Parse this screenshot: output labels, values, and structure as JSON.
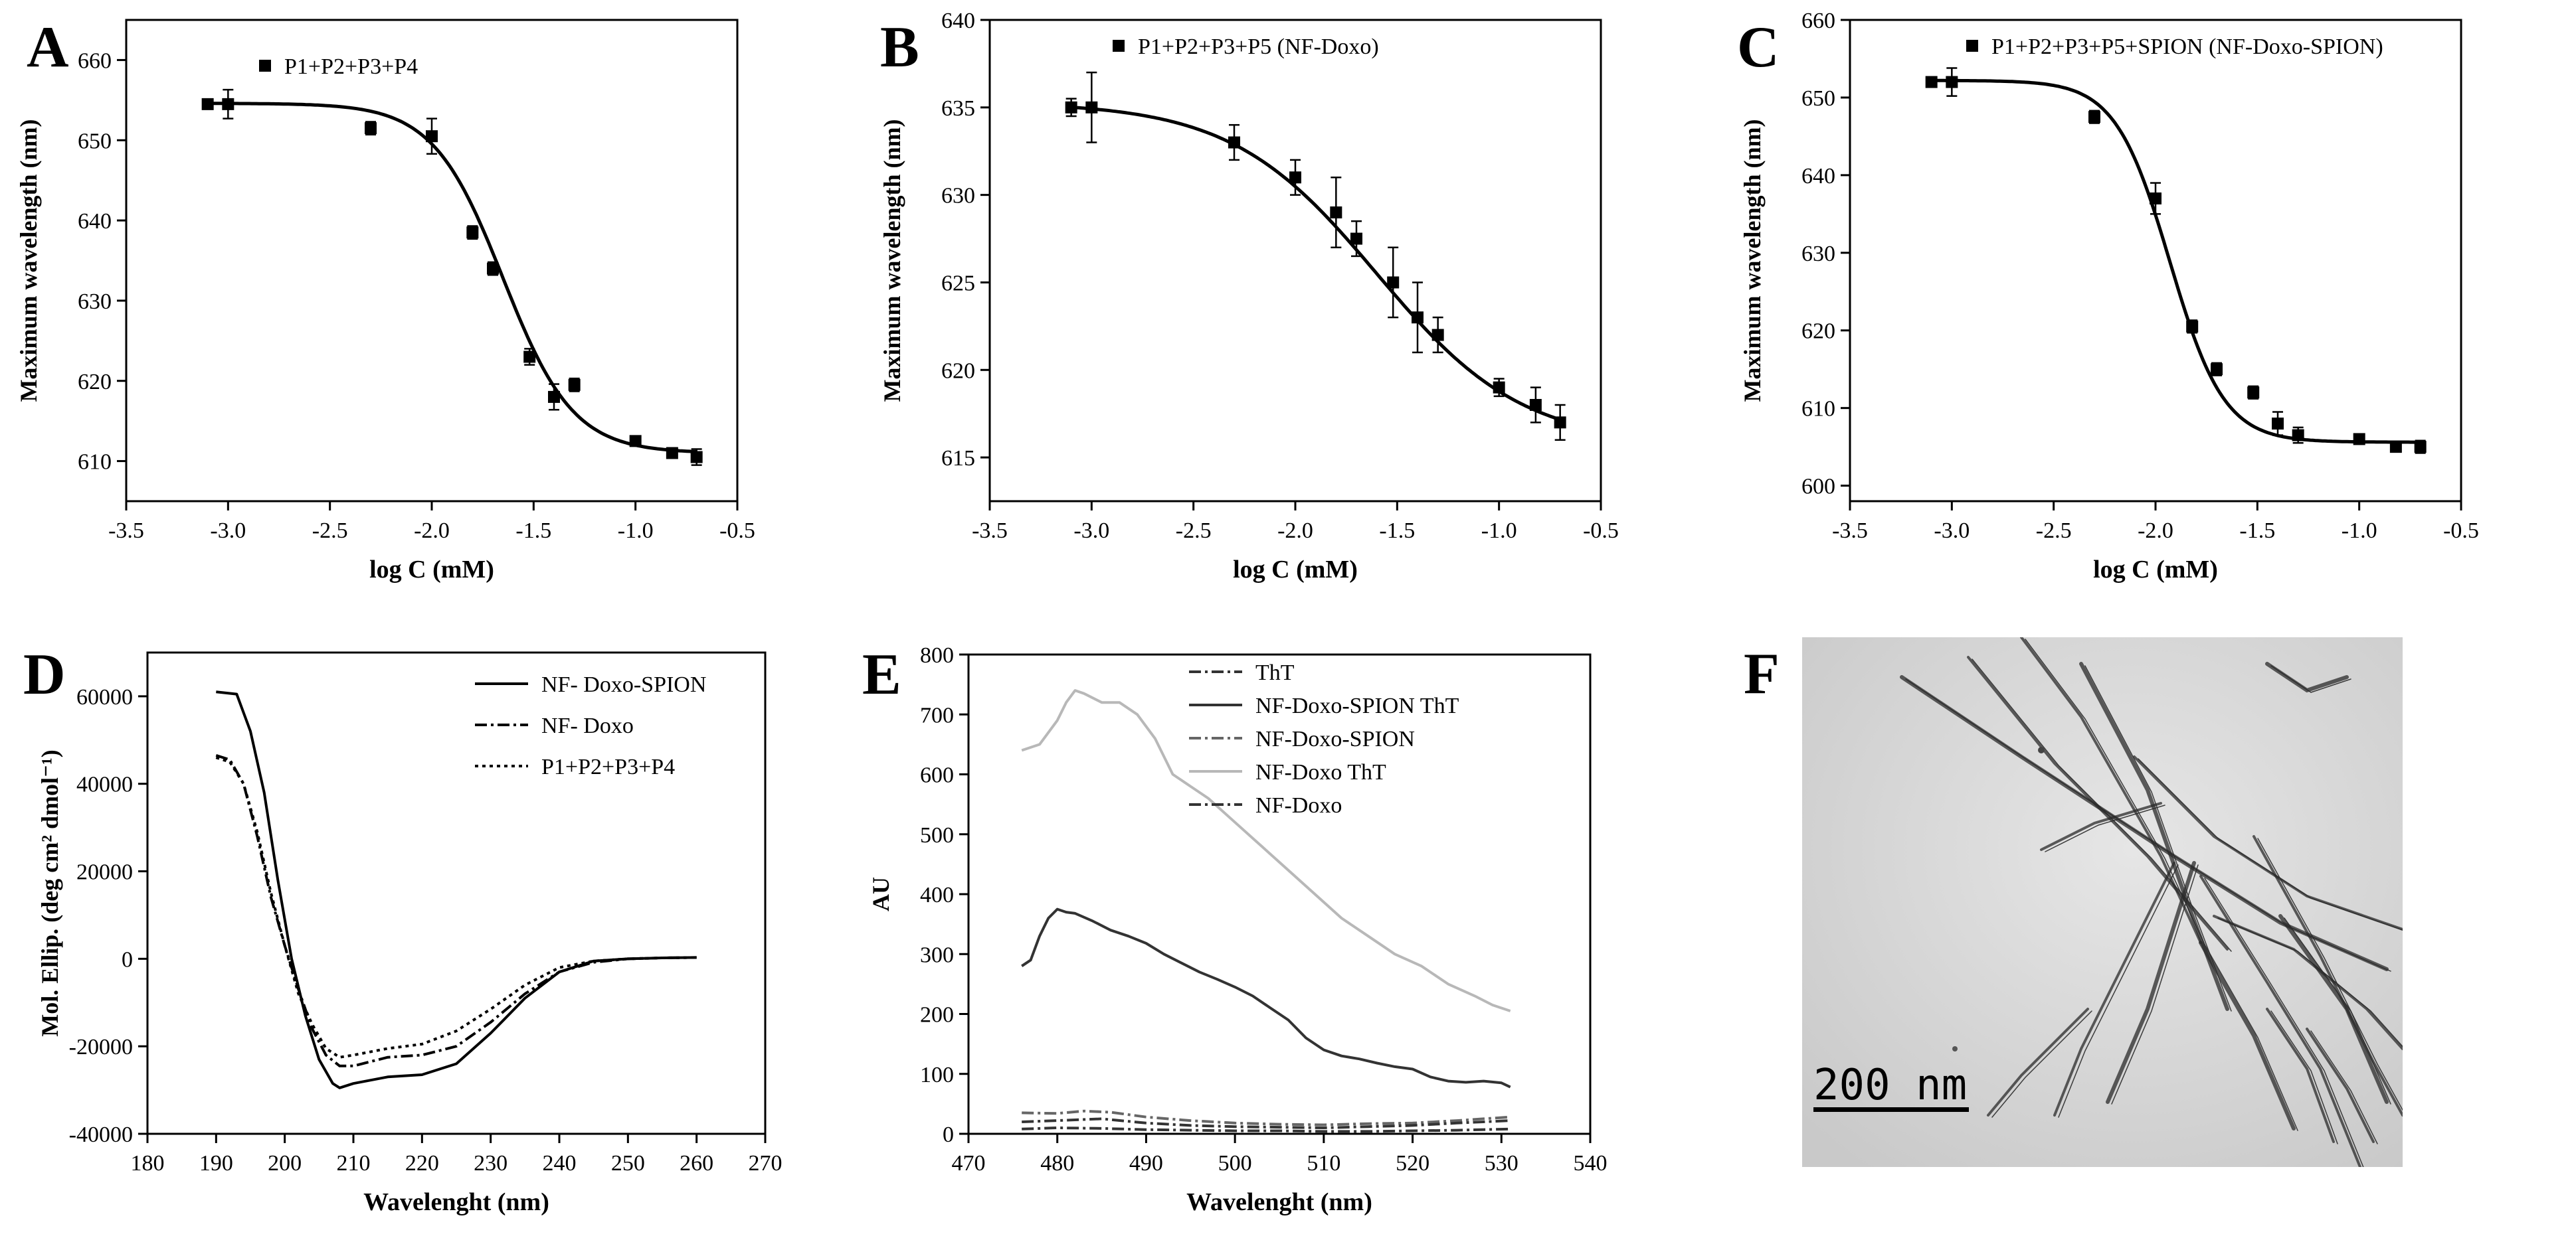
{
  "chart_data": [
    {
      "id": "A",
      "type": "scatter",
      "letter": "A",
      "xlabel": "log C (mM)",
      "ylabel": "Maximum wavelength (nm)",
      "xlim": [
        -3.5,
        -0.5
      ],
      "ylim": [
        605,
        665
      ],
      "xticks": [
        -3.5,
        -3.0,
        -2.5,
        -2.0,
        -1.5,
        -1.0,
        -0.5
      ],
      "xtick_labels": [
        "-3.5",
        "-3.0",
        "-2.5",
        "-2.0",
        "-1.5",
        "-1.0",
        "-0.5"
      ],
      "yticks": [
        610,
        620,
        630,
        640,
        650,
        660
      ],
      "ytick_labels": [
        "610",
        "620",
        "630",
        "640",
        "650",
        "660"
      ],
      "legend": [
        "P1+P2+P3+P4"
      ],
      "x": [
        -3.1,
        -3.0,
        -2.3,
        -2.0,
        -1.8,
        -1.7,
        -1.52,
        -1.4,
        -1.3,
        -1.0,
        -0.82,
        -0.7
      ],
      "y": [
        654.5,
        654.5,
        651.5,
        650.5,
        638.5,
        634.0,
        623.0,
        618.0,
        619.5,
        612.5,
        611.0,
        610.5
      ],
      "err": [
        0.3,
        1.8,
        0.8,
        2.2,
        0.8,
        0.8,
        1.0,
        1.6,
        0.8,
        0.4,
        0.4,
        1.0
      ],
      "fit": {
        "top": 654.6,
        "bottom": 611.0,
        "x0": -1.65,
        "k": 5.8
      }
    },
    {
      "id": "B",
      "type": "scatter",
      "letter": "B",
      "xlabel": "log C (mM)",
      "ylabel": "Maximum wavelength (nm)",
      "xlim": [
        -3.5,
        -0.5
      ],
      "ylim": [
        612.5,
        640
      ],
      "xticks": [
        -3.5,
        -3.0,
        -2.5,
        -2.0,
        -1.5,
        -1.0,
        -0.5
      ],
      "xtick_labels": [
        "-3.5",
        "-3.0",
        "-2.5",
        "-2.0",
        "-1.5",
        "-1.0",
        "-0.5"
      ],
      "yticks": [
        615,
        620,
        625,
        630,
        635,
        640
      ],
      "ytick_labels": [
        "615",
        "620",
        "625",
        "630",
        "635",
        "640"
      ],
      "legend": [
        "P1+P2+P3+P5 (NF-Doxo)"
      ],
      "x": [
        -3.1,
        -3.0,
        -2.3,
        -2.0,
        -1.8,
        -1.7,
        -1.52,
        -1.4,
        -1.3,
        -1.0,
        -0.82,
        -0.7
      ],
      "y": [
        635.0,
        635.0,
        633.0,
        631.0,
        629.0,
        627.5,
        625.0,
        623.0,
        622.0,
        619.0,
        618.0,
        617.0
      ],
      "err": [
        0.5,
        2.0,
        1.0,
        1.0,
        2.0,
        1.0,
        2.0,
        2.0,
        1.0,
        0.5,
        1.0,
        1.0
      ],
      "fit": {
        "top": 635.3,
        "bottom": 615.7,
        "x0": -1.6,
        "k": 2.8
      }
    },
    {
      "id": "C",
      "type": "scatter",
      "letter": "C",
      "xlabel": "log C (mM)",
      "ylabel": "Maximum wavelength (nm)",
      "xlim": [
        -3.5,
        -0.5
      ],
      "ylim": [
        598,
        660
      ],
      "xticks": [
        -3.5,
        -3.0,
        -2.5,
        -2.0,
        -1.5,
        -1.0,
        -0.5
      ],
      "xtick_labels": [
        "-3.5",
        "-3.0",
        "-2.5",
        "-2.0",
        "-1.5",
        "-1.0",
        "-0.5"
      ],
      "yticks": [
        600,
        610,
        620,
        630,
        640,
        650,
        660
      ],
      "ytick_labels": [
        "600",
        "610",
        "620",
        "630",
        "640",
        "650",
        "660"
      ],
      "legend": [
        "P1+P2+P3+P5+SPION (NF-Doxo-SPION)"
      ],
      "x": [
        -3.1,
        -3.0,
        -2.3,
        -2.0,
        -1.82,
        -1.7,
        -1.52,
        -1.4,
        -1.3,
        -1.0,
        -0.82,
        -0.7
      ],
      "y": [
        652.0,
        652.0,
        647.5,
        637.0,
        620.5,
        615.0,
        612.0,
        608.0,
        606.5,
        606.0,
        605.0,
        605.0
      ],
      "err": [
        0.5,
        1.8,
        0.8,
        2.0,
        0.8,
        0.8,
        0.8,
        1.5,
        1.0,
        0.4,
        0.4,
        0.8
      ],
      "fit": {
        "top": 652.2,
        "bottom": 605.6,
        "x0": -1.93,
        "k": 7.5
      }
    },
    {
      "id": "D",
      "type": "line",
      "letter": "D",
      "xlabel": "Wavelenght (nm)",
      "ylabel": "Mol. Ellip. (deg cm² dmol⁻¹)",
      "xlim": [
        180,
        270
      ],
      "ylim": [
        -40000,
        70000
      ],
      "xticks": [
        180,
        190,
        200,
        210,
        220,
        230,
        240,
        250,
        260,
        270
      ],
      "xtick_labels": [
        "180",
        "190",
        "200",
        "210",
        "220",
        "230",
        "240",
        "250",
        "260",
        "270"
      ],
      "yticks": [
        -40000,
        -20000,
        0,
        20000,
        40000,
        60000
      ],
      "ytick_labels": [
        "-40000",
        "-20000",
        "0",
        "20000",
        "40000",
        "60000"
      ],
      "series": [
        {
          "name": "NF- Doxo-SPION",
          "style": "solid",
          "x": [
            190,
            193,
            195,
            197,
            199,
            201,
            203,
            205,
            207,
            208,
            210,
            215,
            220,
            225,
            230,
            235,
            240,
            245,
            250,
            255,
            260
          ],
          "y": [
            61000,
            60500,
            52000,
            38000,
            18000,
            0,
            -13000,
            -23000,
            -28500,
            -29500,
            -28500,
            -27000,
            -26500,
            -24000,
            -17000,
            -9000,
            -3000,
            -500,
            0,
            200,
            300
          ]
        },
        {
          "name": "NF- Doxo",
          "style": "dashdot",
          "x": [
            190,
            192,
            194,
            196,
            198,
            200,
            202,
            204,
            206,
            208,
            210,
            215,
            220,
            225,
            230,
            235,
            240,
            245,
            250,
            255,
            260
          ],
          "y": [
            46500,
            45500,
            40000,
            28000,
            14000,
            3000,
            -7000,
            -16000,
            -22000,
            -24500,
            -24500,
            -22500,
            -22000,
            -20000,
            -14500,
            -8000,
            -3000,
            -800,
            0,
            200,
            300
          ]
        },
        {
          "name": "P1+P2+P3+P4",
          "style": "dotted",
          "x": [
            190,
            192,
            194,
            196,
            198,
            200,
            202,
            204,
            206,
            208,
            210,
            215,
            220,
            225,
            230,
            235,
            240,
            245,
            250,
            255,
            260
          ],
          "y": [
            46000,
            45000,
            40000,
            29000,
            15000,
            3000,
            -8000,
            -15000,
            -20500,
            -22500,
            -22000,
            -20500,
            -19500,
            -16500,
            -11500,
            -6000,
            -2000,
            -500,
            0,
            200,
            300
          ]
        }
      ]
    },
    {
      "id": "E",
      "type": "line",
      "letter": "E",
      "xlabel": "Wavelenght (nm)",
      "ylabel": "AU",
      "xlim": [
        470,
        540
      ],
      "ylim": [
        0,
        800
      ],
      "xticks": [
        470,
        480,
        490,
        500,
        510,
        520,
        530,
        540
      ],
      "xtick_labels": [
        "470",
        "480",
        "490",
        "500",
        "510",
        "520",
        "530",
        "540"
      ],
      "yticks": [
        0,
        100,
        200,
        300,
        400,
        500,
        600,
        700,
        800
      ],
      "ytick_labels": [
        "0",
        "100",
        "200",
        "300",
        "400",
        "500",
        "600",
        "700",
        "800"
      ],
      "series": [
        {
          "name": "ThT",
          "style": "dashdot",
          "color": "#333333",
          "x": [
            476,
            480,
            485,
            490,
            495,
            500,
            505,
            510,
            515,
            520,
            525,
            531
          ],
          "y": [
            8,
            10,
            9,
            7,
            6,
            5,
            5,
            4,
            4,
            5,
            6,
            8
          ]
        },
        {
          "name": "NF-Doxo-SPION  ThT",
          "style": "solid",
          "color": "#333333",
          "x": [
            476,
            477,
            478,
            479,
            480,
            481,
            482,
            484,
            486,
            488,
            490,
            492,
            494,
            496,
            498,
            500,
            502,
            504,
            506,
            508,
            510,
            512,
            514,
            516,
            518,
            520,
            522,
            524,
            526,
            528,
            530,
            531
          ],
          "y": [
            280,
            290,
            330,
            360,
            375,
            370,
            368,
            355,
            340,
            330,
            318,
            300,
            285,
            270,
            258,
            245,
            230,
            210,
            190,
            160,
            140,
            130,
            125,
            118,
            112,
            108,
            95,
            88,
            86,
            88,
            85,
            78
          ]
        },
        {
          "name": "NF-Doxo-SPION",
          "style": "dashdot",
          "color": "#666666",
          "x": [
            476,
            480,
            483,
            486,
            490,
            495,
            500,
            505,
            510,
            515,
            520,
            525,
            531
          ],
          "y": [
            35,
            34,
            38,
            36,
            28,
            22,
            18,
            16,
            15,
            17,
            18,
            22,
            28
          ]
        },
        {
          "name": "NF-Doxo  ThT",
          "style": "solid",
          "color": "#b8b8b8",
          "x": [
            476,
            478,
            480,
            481,
            482,
            483,
            485,
            487,
            489,
            491,
            493,
            495,
            497,
            500,
            503,
            506,
            509,
            512,
            515,
            518,
            521,
            524,
            527,
            529,
            531
          ],
          "y": [
            640,
            650,
            690,
            720,
            740,
            735,
            720,
            720,
            700,
            660,
            600,
            580,
            560,
            520,
            480,
            440,
            400,
            360,
            330,
            300,
            280,
            250,
            230,
            215,
            205
          ]
        },
        {
          "name": "NF-Doxo",
          "style": "dashdot",
          "color": "#333333",
          "x": [
            476,
            480,
            485,
            490,
            495,
            500,
            505,
            510,
            515,
            520,
            525,
            531
          ],
          "y": [
            20,
            22,
            25,
            18,
            14,
            12,
            11,
            10,
            12,
            14,
            18,
            22
          ]
        }
      ]
    }
  ],
  "tem": {
    "letter": "F",
    "scale_label": "200 nm"
  }
}
